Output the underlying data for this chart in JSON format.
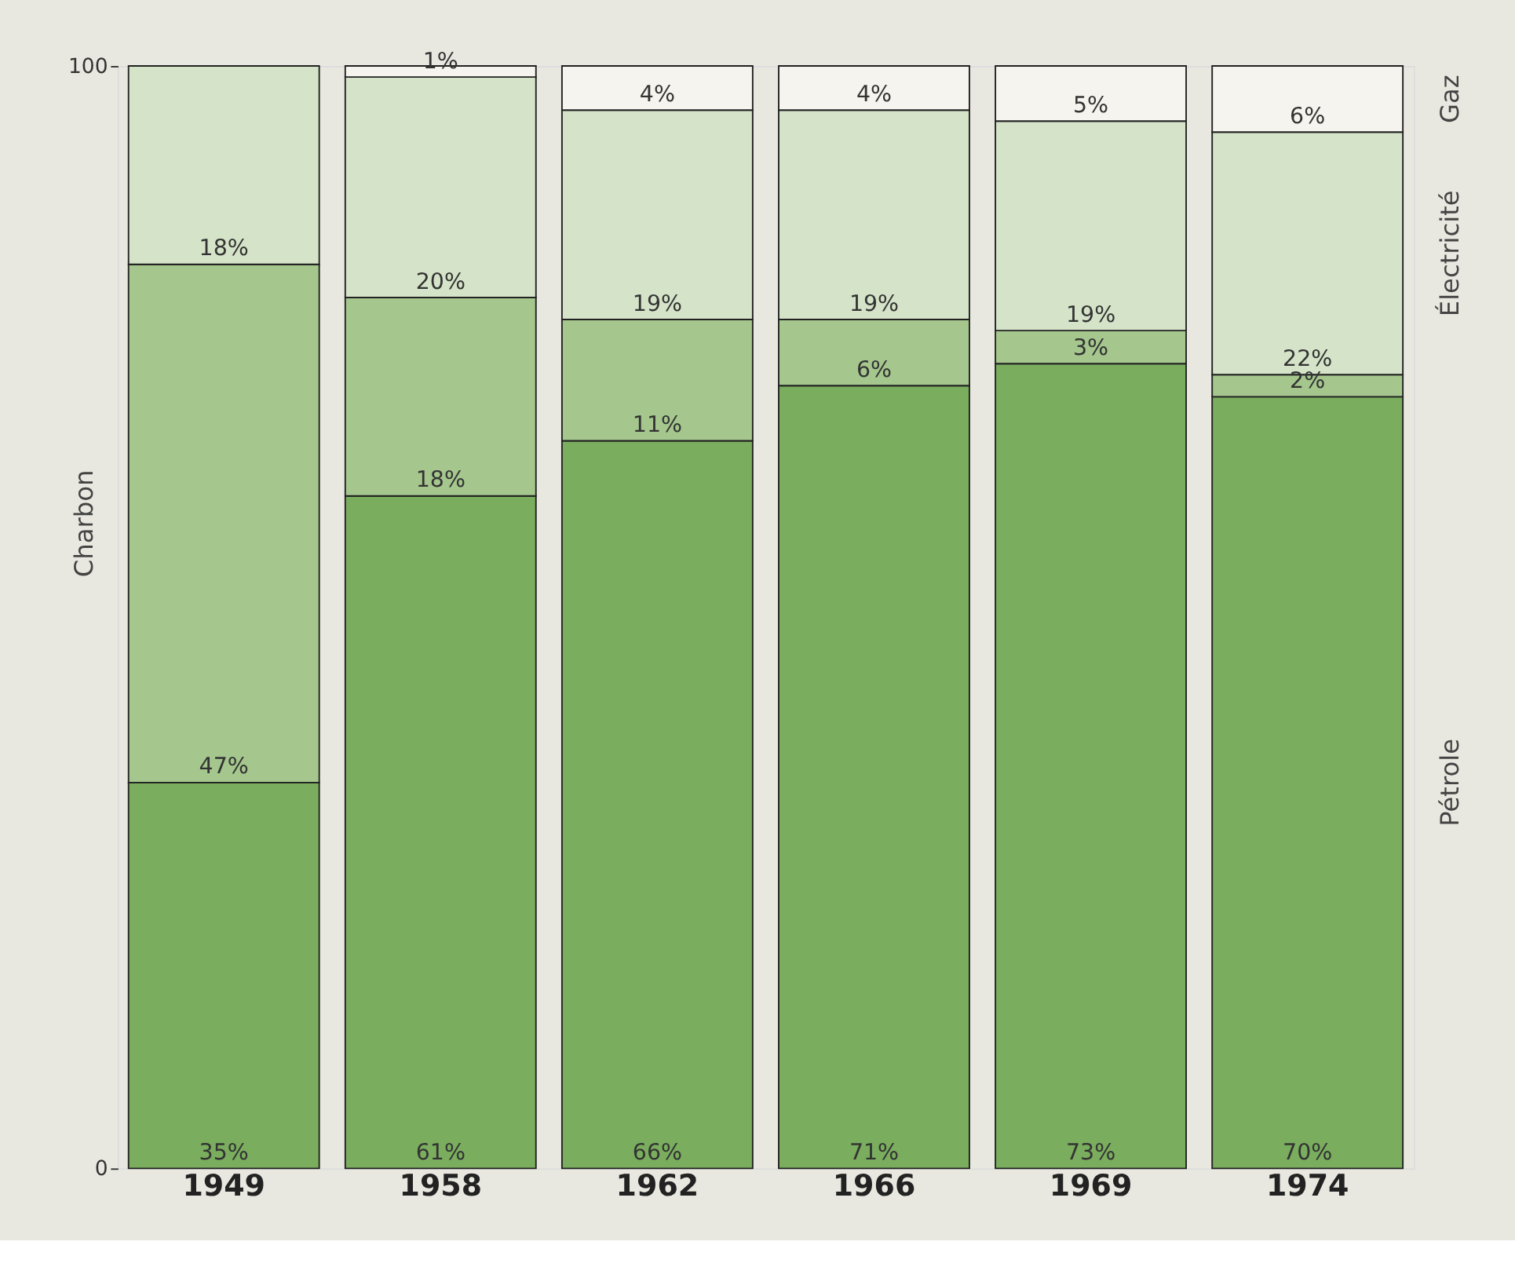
{
  "chart_data": {
    "type": "bar",
    "stacked": true,
    "categories": [
      "1949",
      "1958",
      "1962",
      "1966",
      "1969",
      "1974"
    ],
    "series": [
      {
        "name": "Pétrole",
        "color": "#7aad5e",
        "values": [
          35,
          61,
          66,
          71,
          73,
          70
        ],
        "value_labels": [
          "35%",
          "61%",
          "66%",
          "71%",
          "73%",
          "70%"
        ]
      },
      {
        "name": "Charbon",
        "color": "#a5c78e",
        "values": [
          47,
          18,
          11,
          6,
          3,
          2
        ],
        "value_labels": [
          "47%",
          "18%",
          "11%",
          "6%",
          "3%",
          "2%"
        ]
      },
      {
        "name": "Électricité",
        "color": "#d5e4c8",
        "values": [
          18,
          20,
          19,
          19,
          19,
          22
        ],
        "value_labels": [
          "18%",
          "20%",
          "19%",
          "19%",
          "19%",
          "22%"
        ]
      },
      {
        "name": "Gaz",
        "color": "#f6f4ee",
        "values": [
          null,
          1,
          4,
          4,
          5,
          6
        ],
        "value_labels": [
          null,
          "1%",
          "4%",
          "4%",
          "5%",
          "6%"
        ]
      }
    ],
    "ylim": [
      0,
      100
    ],
    "yticks": [
      0,
      100
    ]
  }
}
